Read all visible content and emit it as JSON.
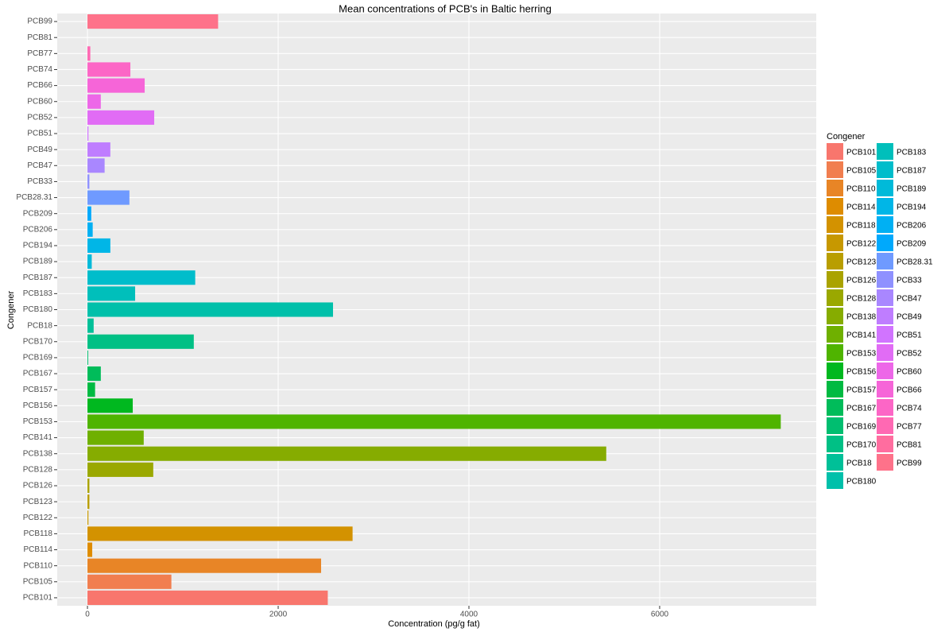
{
  "chart_data": {
    "type": "bar",
    "orientation": "horizontal",
    "title": "Mean concentrations of PCB's in Baltic herring",
    "x_label": "Concentration (pg/g fat)",
    "y_label": "Congener",
    "legend_title": "Congener",
    "categories": [
      "PCB101",
      "PCB105",
      "PCB110",
      "PCB114",
      "PCB118",
      "PCB122",
      "PCB123",
      "PCB126",
      "PCB128",
      "PCB138",
      "PCB141",
      "PCB153",
      "PCB156",
      "PCB157",
      "PCB167",
      "PCB169",
      "PCB170",
      "PCB18",
      "PCB180",
      "PCB183",
      "PCB187",
      "PCB189",
      "PCB194",
      "PCB206",
      "PCB209",
      "PCB28.31",
      "PCB33",
      "PCB47",
      "PCB49",
      "PCB51",
      "PCB52",
      "PCB60",
      "PCB66",
      "PCB74",
      "PCB77",
      "PCB81",
      "PCB99"
    ],
    "values": [
      2520,
      880,
      2450,
      50,
      2780,
      10,
      20,
      20,
      690,
      5440,
      590,
      7270,
      475,
      80,
      140,
      8,
      1115,
      65,
      2575,
      500,
      1130,
      45,
      240,
      55,
      40,
      440,
      20,
      180,
      240,
      10,
      700,
      140,
      600,
      450,
      30,
      0,
      1370
    ],
    "colors": [
      "#F8766D",
      "#F17E4F",
      "#E88526",
      "#DE8C00",
      "#D39200",
      "#C79800",
      "#B99E00",
      "#AAA300",
      "#9AA800",
      "#86AC00",
      "#6FB000",
      "#4FB400",
      "#00B81F",
      "#00BA42",
      "#00BC5A",
      "#00BE70",
      "#00C085",
      "#00C098",
      "#00C0AA",
      "#00BFBB",
      "#00BDCB",
      "#00BAD9",
      "#00B6E7",
      "#00B0F3",
      "#00A9FC",
      "#6F9AFF",
      "#8F91FF",
      "#A987FF",
      "#BF7DFF",
      "#D174FF",
      "#E16CF5",
      "#ED67E8",
      "#F665D8",
      "#FC66C6",
      "#FF69B3",
      "#FF6D9F",
      "#FE728A"
    ],
    "xlim": [
      -317,
      7642
    ],
    "xticks": [
      0,
      2000,
      4000,
      6000
    ],
    "grid": true,
    "legend_position": "right"
  }
}
